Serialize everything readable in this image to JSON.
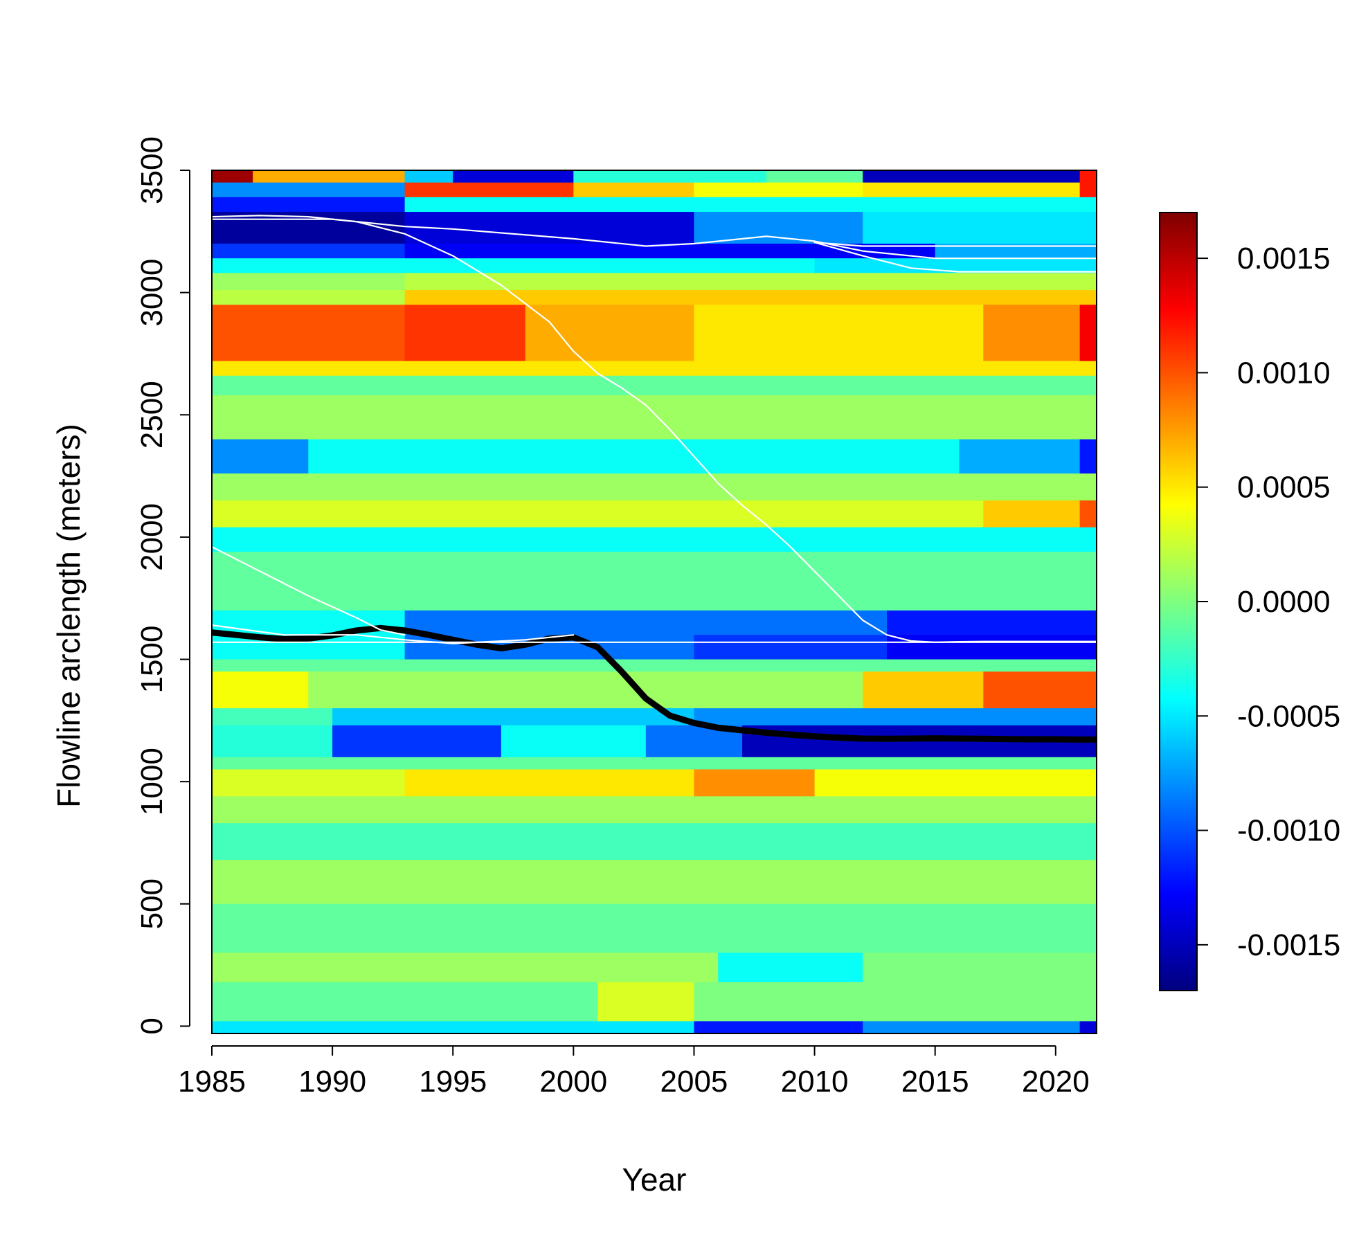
{
  "chart_data": {
    "type": "heatmap",
    "title": "",
    "xlabel": "Year",
    "ylabel": "Flowline arclength (meters)",
    "xlim": [
      1985,
      2021.7
    ],
    "ylim": [
      -30,
      3500
    ],
    "x_ticks": [
      "1985",
      "1990",
      "1995",
      "2000",
      "2005",
      "2010",
      "2015",
      "2020"
    ],
    "y_ticks": [
      "0",
      "500",
      "1000",
      "1500",
      "2000",
      "2500",
      "3000",
      "3500"
    ],
    "colorbar": {
      "min": -0.0017,
      "max": 0.0017,
      "ticks": [
        "-0.0015",
        "-0.0010",
        "-0.0005",
        "0.0000",
        "0.0005",
        "0.0010",
        "0.0015"
      ],
      "colormap": [
        "#00007F",
        "#0000FF",
        "#007FFF",
        "#00FFFF",
        "#7FFF7F",
        "#FFFF00",
        "#FF7F00",
        "#FF0000",
        "#7F0000"
      ]
    },
    "grid": false,
    "legend": "colorbar-right",
    "heatmap_bands": [
      {
        "y": [
          3450,
          3500
        ],
        "segments": [
          [
            1985,
            1986.7,
            0.0016
          ],
          [
            1986.7,
            1993,
            0.0007
          ],
          [
            1993,
            1995,
            -0.0006
          ],
          [
            1995,
            2000,
            -0.0014
          ],
          [
            2000,
            2008,
            -0.0003
          ],
          [
            2008,
            2012,
            -0.0001
          ],
          [
            2012,
            2021,
            -0.0015
          ],
          [
            2021,
            2021.7,
            0.0012
          ]
        ]
      },
      {
        "y": [
          3390,
          3450
        ],
        "segments": [
          [
            1985,
            1993,
            -0.0008
          ],
          [
            1993,
            2000,
            0.0011
          ],
          [
            2000,
            2005,
            0.0006
          ],
          [
            2005,
            2012,
            0.0004
          ],
          [
            2012,
            2021,
            0.0005
          ],
          [
            2021,
            2021.7,
            0.0012
          ]
        ]
      },
      {
        "y": [
          3330,
          3390
        ],
        "segments": [
          [
            1985,
            1993,
            -0.0012
          ],
          [
            1993,
            2021.7,
            -0.0004
          ]
        ]
      },
      {
        "y": [
          3200,
          3330
        ],
        "segments": [
          [
            1985,
            1993,
            -0.0016
          ],
          [
            1993,
            2005,
            -0.0014
          ],
          [
            2005,
            2012,
            -0.0008
          ],
          [
            2012,
            2021.7,
            -0.0005
          ]
        ]
      },
      {
        "y": [
          3140,
          3200
        ],
        "segments": [
          [
            1985,
            1993,
            -0.0011
          ],
          [
            1993,
            2015,
            -0.0013
          ],
          [
            2015,
            2021.7,
            -0.0007
          ]
        ]
      },
      {
        "y": [
          3080,
          3140
        ],
        "segments": [
          [
            1985,
            2010,
            -0.0004
          ],
          [
            2010,
            2021.7,
            -0.0005
          ]
        ]
      },
      {
        "y": [
          3010,
          3080
        ],
        "segments": [
          [
            1985,
            1993,
            0.0001
          ],
          [
            1993,
            2021.7,
            0.0002
          ]
        ]
      },
      {
        "y": [
          2950,
          3010
        ],
        "segments": [
          [
            1985,
            1993,
            0.0002
          ],
          [
            1993,
            2021.7,
            0.0006
          ]
        ]
      },
      {
        "y": [
          2720,
          2950
        ],
        "segments": [
          [
            1985,
            1993,
            0.001
          ],
          [
            1993,
            1998,
            0.0011
          ],
          [
            1998,
            2005,
            0.0007
          ],
          [
            2005,
            2017,
            0.0005
          ],
          [
            2017,
            2021,
            0.0008
          ],
          [
            2021,
            2021.7,
            0.0013
          ]
        ]
      },
      {
        "y": [
          2660,
          2720
        ],
        "segments": [
          [
            1985,
            2021.7,
            0.0005
          ]
        ]
      },
      {
        "y": [
          2580,
          2660
        ],
        "segments": [
          [
            1985,
            2021.7,
            -0.0001
          ]
        ]
      },
      {
        "y": [
          2400,
          2580
        ],
        "segments": [
          [
            1985,
            2021.7,
            0.0001
          ]
        ]
      },
      {
        "y": [
          2260,
          2400
        ],
        "segments": [
          [
            1985,
            1989,
            -0.0008
          ],
          [
            1989,
            2016,
            -0.0004
          ],
          [
            2016,
            2021,
            -0.0007
          ],
          [
            2021,
            2021.7,
            -0.0012
          ]
        ]
      },
      {
        "y": [
          2150,
          2260
        ],
        "segments": [
          [
            1985,
            2021.7,
            0.0001
          ]
        ]
      },
      {
        "y": [
          2040,
          2150
        ],
        "segments": [
          [
            1985,
            2017,
            0.0003
          ],
          [
            2017,
            2021,
            0.0006
          ],
          [
            2021,
            2021.7,
            0.001
          ]
        ]
      },
      {
        "y": [
          1940,
          2040
        ],
        "segments": [
          [
            1985,
            2021.7,
            -0.0004
          ]
        ]
      },
      {
        "y": [
          1700,
          1940
        ],
        "segments": [
          [
            1985,
            2021.7,
            -0.0001
          ]
        ]
      },
      {
        "y": [
          1600,
          1700
        ],
        "segments": [
          [
            1985,
            1993,
            -0.0004
          ],
          [
            1993,
            2013,
            -0.0009
          ],
          [
            2013,
            2021.7,
            -0.0012
          ]
        ]
      },
      {
        "y": [
          1500,
          1600
        ],
        "segments": [
          [
            1985,
            1993,
            -0.0004
          ],
          [
            1993,
            2005,
            -0.0009
          ],
          [
            2005,
            2013,
            -0.0011
          ],
          [
            2013,
            2021.7,
            -0.0013
          ]
        ]
      },
      {
        "y": [
          1450,
          1500
        ],
        "segments": [
          [
            1985,
            2021.7,
            -0.0001
          ]
        ]
      },
      {
        "y": [
          1300,
          1450
        ],
        "segments": [
          [
            1985,
            1989,
            0.0004
          ],
          [
            1989,
            2012,
            0.0001
          ],
          [
            2012,
            2017,
            0.0006
          ],
          [
            2017,
            2021.7,
            0.001
          ]
        ]
      },
      {
        "y": [
          1230,
          1300
        ],
        "segments": [
          [
            1985,
            1990,
            -0.0002
          ],
          [
            1990,
            2005,
            -0.0006
          ],
          [
            2005,
            2021.7,
            -0.0008
          ]
        ]
      },
      {
        "y": [
          1100,
          1230
        ],
        "segments": [
          [
            1985,
            1990,
            -0.0003
          ],
          [
            1990,
            1997,
            -0.0011
          ],
          [
            1997,
            2003,
            -0.0004
          ],
          [
            2003,
            2007,
            -0.0009
          ],
          [
            2007,
            2021.7,
            -0.0015
          ]
        ]
      },
      {
        "y": [
          1050,
          1100
        ],
        "segments": [
          [
            1985,
            2021.7,
            -0.0001
          ]
        ]
      },
      {
        "y": [
          940,
          1050
        ],
        "segments": [
          [
            1985,
            1993,
            0.0003
          ],
          [
            1993,
            2005,
            0.0005
          ],
          [
            2005,
            2010,
            0.0008
          ],
          [
            2010,
            2021.7,
            0.0004
          ]
        ]
      },
      {
        "y": [
          830,
          940
        ],
        "segments": [
          [
            1985,
            2021.7,
            0.0001
          ]
        ]
      },
      {
        "y": [
          680,
          830
        ],
        "segments": [
          [
            1985,
            2021.7,
            -0.0002
          ]
        ]
      },
      {
        "y": [
          500,
          680
        ],
        "segments": [
          [
            1985,
            2021.7,
            0.0001
          ]
        ]
      },
      {
        "y": [
          300,
          500
        ],
        "segments": [
          [
            1985,
            2021.7,
            -0.0001
          ]
        ]
      },
      {
        "y": [
          180,
          300
        ],
        "segments": [
          [
            1985,
            2006,
            0.0001
          ],
          [
            2006,
            2012,
            -0.0004
          ],
          [
            2012,
            2021.7,
            0.0
          ]
        ]
      },
      {
        "y": [
          20,
          180
        ],
        "segments": [
          [
            1985,
            2001,
            -0.0001
          ],
          [
            2001,
            2005,
            0.0003
          ],
          [
            2005,
            2021.7,
            0.0
          ]
        ]
      },
      {
        "y": [
          -30,
          20
        ],
        "segments": [
          [
            1985,
            2005,
            -0.0005
          ],
          [
            2005,
            2012,
            -0.0012
          ],
          [
            2012,
            2021,
            -0.0008
          ],
          [
            2021,
            2021.7,
            -0.0014
          ]
        ]
      }
    ],
    "series": [
      {
        "color": "#000000",
        "x": [
          1985,
          1986,
          1987,
          1988,
          1989,
          1990,
          1991,
          1992,
          1993,
          1994,
          1995,
          1996,
          1997,
          1998,
          1999,
          2000,
          2001,
          2002,
          2003,
          2004,
          2005,
          2006,
          2007,
          2008,
          2009,
          2010,
          2011,
          2012,
          2013,
          2014,
          2015,
          2016,
          2017,
          2018,
          2019,
          2020,
          2021,
          2021.7
        ],
        "y": [
          1610,
          1600,
          1590,
          1583,
          1585,
          1598,
          1618,
          1628,
          1618,
          1600,
          1580,
          1560,
          1545,
          1560,
          1585,
          1590,
          1550,
          1450,
          1340,
          1270,
          1240,
          1220,
          1210,
          1200,
          1192,
          1185,
          1180,
          1176,
          1175,
          1176,
          1177,
          1176,
          1175,
          1174,
          1173,
          1173,
          1172,
          1172
        ]
      },
      {
        "color": "#ffffff",
        "x": [
          1985,
          1987,
          1989,
          1991,
          1993,
          1995,
          1997,
          1999,
          2000,
          2001,
          2002,
          2003,
          2004,
          2005,
          2006,
          2007,
          2008,
          2009,
          2010,
          2011,
          2012,
          2013,
          2014,
          2015,
          2016,
          2017,
          2018,
          2019,
          2020,
          2021,
          2021.7
        ],
        "y": [
          3310,
          3315,
          3310,
          3290,
          3240,
          3150,
          3030,
          2880,
          2760,
          2670,
          2610,
          2540,
          2440,
          2330,
          2220,
          2130,
          2050,
          1960,
          1860,
          1760,
          1660,
          1600,
          1575,
          1570,
          1572,
          1573,
          1573,
          1573,
          1573,
          1573,
          1573
        ]
      },
      {
        "color": "#ffffff",
        "x": [
          1985,
          1990,
          1993,
          1995,
          2000,
          2003,
          2005,
          2008,
          2010,
          2012,
          2015,
          2018,
          2021.7
        ],
        "y": [
          3300,
          3300,
          3270,
          3260,
          3220,
          3190,
          3200,
          3230,
          3210,
          3170,
          3140,
          3140,
          3140
        ]
      },
      {
        "color": "#ffffff",
        "x": [
          2010,
          2012,
          2015,
          2018,
          2021.7
        ],
        "y": [
          3205,
          3190,
          3190,
          3190,
          3190
        ]
      },
      {
        "color": "#ffffff",
        "x": [
          2010,
          2012,
          2014,
          2016,
          2021.7
        ],
        "y": [
          3205,
          3150,
          3100,
          3085,
          3085
        ]
      },
      {
        "color": "#ffffff",
        "x": [
          1985,
          1987,
          1989,
          1991,
          1992,
          1993
        ],
        "y": [
          1960,
          1860,
          1760,
          1670,
          1620,
          1600
        ]
      },
      {
        "color": "#ffffff",
        "x": [
          1985,
          1988,
          1991,
          1993,
          1995,
          1998,
          2000
        ],
        "y": [
          1640,
          1600,
          1600,
          1580,
          1565,
          1580,
          1600
        ]
      },
      {
        "color": "#ffffff",
        "x": [
          1985,
          2021.7
        ],
        "y": [
          1570,
          1570
        ]
      }
    ]
  }
}
